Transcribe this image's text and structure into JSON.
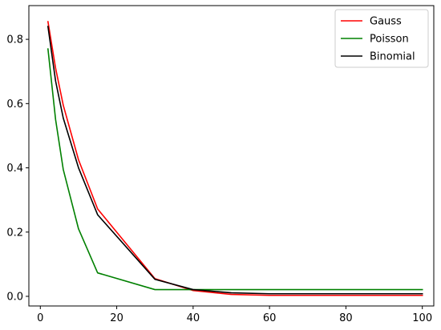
{
  "chart_data": {
    "type": "line",
    "title": "",
    "xlabel": "",
    "ylabel": "",
    "xlim": [
      -3,
      103
    ],
    "ylim": [
      -0.03,
      0.905
    ],
    "xticks": [
      0,
      20,
      40,
      60,
      80,
      100
    ],
    "yticks": [
      0.0,
      0.2,
      0.4,
      0.6,
      0.8
    ],
    "legend_position": "top-right",
    "grid": false,
    "x": [
      2,
      4,
      6,
      10,
      15,
      30,
      40,
      50,
      60,
      80,
      100
    ],
    "series": [
      {
        "name": "Gauss",
        "color": "#ff0000",
        "values": [
          0.855,
          0.71,
          0.595,
          0.425,
          0.272,
          0.055,
          0.018,
          0.006,
          0.003,
          0.003,
          0.003
        ]
      },
      {
        "name": "Poisson",
        "color": "#008000",
        "values": [
          0.77,
          0.55,
          0.395,
          0.21,
          0.073,
          0.021,
          0.021,
          0.021,
          0.021,
          0.021,
          0.021
        ]
      },
      {
        "name": "Binomial",
        "color": "#000000",
        "values": [
          0.84,
          0.67,
          0.555,
          0.4,
          0.254,
          0.053,
          0.021,
          0.011,
          0.008,
          0.008,
          0.008
        ]
      }
    ]
  }
}
